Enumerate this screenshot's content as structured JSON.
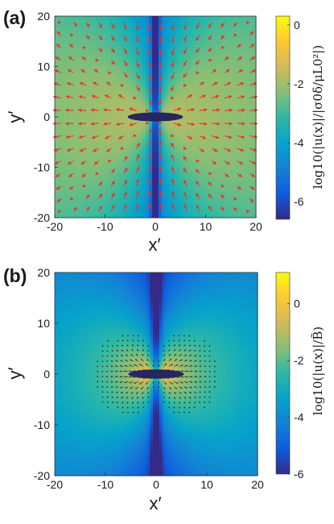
{
  "chart_data": [
    {
      "panel": "(a)",
      "type": "heatmap",
      "xlabel": "x′",
      "ylabel": "y′",
      "xlim": [
        -20,
        20
      ],
      "ylim": [
        -20,
        20
      ],
      "xticks": [
        "-20",
        "-10",
        "0",
        "10",
        "20"
      ],
      "yticks": [
        "20",
        "10",
        "0",
        "-10",
        "-20"
      ],
      "colorbar_label": "log10(|u(x)|/|σ0δ/μL0²|)",
      "colorbar_range": [
        -6.6,
        0.3
      ],
      "colorbar_ticks": [
        "0",
        "-2",
        "-4",
        "-6"
      ],
      "colormap": "parula",
      "inclusion": {
        "shape": "ellipse",
        "cx": 0,
        "cy": 0,
        "semi_x": 5.5,
        "semi_y": 0.9,
        "color": "#262661"
      },
      "arrows": {
        "color": "#e8352a",
        "grid_step": 2.5
      },
      "grid": false
    },
    {
      "panel": "(b)",
      "type": "heatmap",
      "xlabel": "x′",
      "ylabel": "y′",
      "xlim": [
        -20,
        20
      ],
      "ylim": [
        -20,
        20
      ],
      "xticks": [
        "-20",
        "-10",
        "0",
        "10",
        "20"
      ],
      "yticks": [
        "20",
        "10",
        "0",
        "-10",
        "-20"
      ],
      "colorbar_label": "log10(|u(x)|/B̃)",
      "colorbar_range": [
        -6,
        1.1
      ],
      "colorbar_ticks": [
        "0",
        "-2",
        "-4",
        "-6"
      ],
      "colormap": "parula",
      "inclusion": {
        "shape": "ellipse",
        "cx": 0,
        "cy": 0,
        "semi_x": 5.5,
        "semi_y": 0.9,
        "color": "#262661"
      },
      "arrows": {
        "color": "#2b2b2b",
        "grid_step": 1.0
      },
      "grid": false
    }
  ]
}
